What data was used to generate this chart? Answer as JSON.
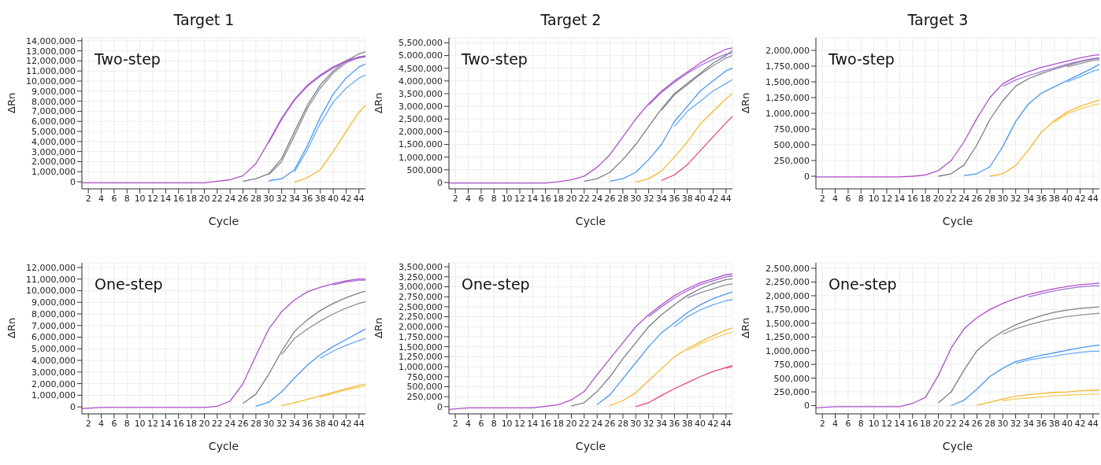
{
  "chart_data": [
    {
      "type": "line",
      "title": "Target 1",
      "xlabel": "Cycle",
      "ylabel": "ΔRn",
      "annotations": [
        "Two-step"
      ],
      "grid": true,
      "x": [
        1,
        4,
        8,
        12,
        14,
        16,
        18,
        20,
        22,
        24,
        26,
        28,
        30,
        32,
        34,
        36,
        38,
        40,
        42,
        44,
        45
      ],
      "xlim": [
        1,
        45
      ],
      "xticks": [
        2,
        4,
        6,
        8,
        10,
        12,
        14,
        16,
        18,
        20,
        22,
        24,
        26,
        28,
        30,
        32,
        34,
        36,
        38,
        40,
        42,
        44
      ],
      "ylim": [
        -700000,
        14300000
      ],
      "yticks": [
        {
          "value": 0,
          "label": "0"
        },
        {
          "value": 1000000,
          "label": "1,000,000"
        },
        {
          "value": 2000000,
          "label": "2,000,000"
        },
        {
          "value": 3000000,
          "label": "3,000,000"
        },
        {
          "value": 4000000,
          "label": "4,000,000"
        },
        {
          "value": 5000000,
          "label": "5,000,000"
        },
        {
          "value": 6000000,
          "label": "6,000,000"
        },
        {
          "value": 7000000,
          "label": "7,000,000"
        },
        {
          "value": 8000000,
          "label": "8,000,000"
        },
        {
          "value": 9000000,
          "label": "9,000,000"
        },
        {
          "value": 10000000,
          "label": "10,000,000"
        },
        {
          "value": 11000000,
          "label": "11,000,000"
        },
        {
          "value": 12000000,
          "label": "12,000,000"
        },
        {
          "value": 13000000,
          "label": "13,000,000"
        },
        {
          "value": 14000000,
          "label": "14,000,000"
        }
      ],
      "series": [
        {
          "color": "#b04ec8",
          "values": [
            -100000,
            -100000,
            -100000,
            -100000,
            -100000,
            -100000,
            -100000,
            -100000,
            50000,
            200000,
            600000,
            1800000,
            4000000,
            6300000,
            8200000,
            9600000,
            10600000,
            11400000,
            12000000,
            12400000,
            12500000
          ]
        },
        {
          "color": "#a070d8",
          "values": [
            null,
            null,
            null,
            null,
            null,
            null,
            null,
            null,
            null,
            null,
            null,
            null,
            3900000,
            6200000,
            8100000,
            9500000,
            10500000,
            11300000,
            11900000,
            12300000,
            12400000
          ]
        },
        {
          "color": "#7d7d88",
          "values": [
            null,
            null,
            null,
            null,
            null,
            null,
            null,
            null,
            null,
            null,
            50000,
            300000,
            800000,
            2300000,
            5000000,
            7600000,
            9600000,
            11000000,
            12000000,
            12700000,
            12900000
          ]
        },
        {
          "color": "#9090a0",
          "values": [
            null,
            null,
            null,
            null,
            null,
            null,
            null,
            null,
            null,
            null,
            null,
            null,
            700000,
            2000000,
            4600000,
            7300000,
            9300000,
            10800000,
            11800000,
            12400000,
            12500000
          ]
        },
        {
          "color": "#4a98f0",
          "values": [
            null,
            null,
            null,
            null,
            null,
            null,
            null,
            null,
            null,
            null,
            null,
            null,
            100000,
            300000,
            1200000,
            3600000,
            6400000,
            8700000,
            10300000,
            11400000,
            11700000
          ]
        },
        {
          "color": "#6aaaf5",
          "values": [
            null,
            null,
            null,
            null,
            null,
            null,
            null,
            null,
            null,
            null,
            null,
            null,
            null,
            null,
            1000000,
            3200000,
            5800000,
            7900000,
            9300000,
            10300000,
            10600000
          ]
        },
        {
          "color": "#f5b830",
          "values": [
            null,
            null,
            null,
            null,
            null,
            null,
            null,
            null,
            null,
            null,
            null,
            null,
            null,
            null,
            -50000,
            400000,
            1200000,
            3000000,
            5000000,
            6900000,
            7600000
          ]
        }
      ]
    },
    {
      "type": "line",
      "title": "Target 2",
      "xlabel": "Cycle",
      "ylabel": "ΔRn",
      "annotations": [
        "Two-step"
      ],
      "grid": true,
      "x": [
        1,
        4,
        8,
        12,
        14,
        16,
        18,
        20,
        22,
        24,
        26,
        28,
        30,
        32,
        34,
        36,
        38,
        40,
        42,
        44,
        45
      ],
      "xlim": [
        1,
        45
      ],
      "xticks": [
        2,
        4,
        6,
        8,
        10,
        12,
        14,
        16,
        18,
        20,
        22,
        24,
        26,
        28,
        30,
        32,
        34,
        36,
        38,
        40,
        42,
        44
      ],
      "ylim": [
        -250000,
        5700000
      ],
      "yticks": [
        {
          "value": 0,
          "label": "0"
        },
        {
          "value": 500000,
          "label": "500,000"
        },
        {
          "value": 1000000,
          "label": "1,000,000"
        },
        {
          "value": 1500000,
          "label": "1,500,000"
        },
        {
          "value": 2000000,
          "label": "2,000,000"
        },
        {
          "value": 2500000,
          "label": "2,500,000"
        },
        {
          "value": 3000000,
          "label": "3,000,000"
        },
        {
          "value": 3500000,
          "label": "3,500,000"
        },
        {
          "value": 4000000,
          "label": "4,000,000"
        },
        {
          "value": 4500000,
          "label": "4,500,000"
        },
        {
          "value": 5000000,
          "label": "5,000,000"
        },
        {
          "value": 5500000,
          "label": "5,500,000"
        }
      ],
      "series": [
        {
          "color": "#b04ec8",
          "values": [
            -20000,
            -20000,
            -20000,
            -20000,
            -20000,
            -20000,
            30000,
            100000,
            250000,
            600000,
            1100000,
            1800000,
            2500000,
            3100000,
            3600000,
            4000000,
            4350000,
            4700000,
            5000000,
            5250000,
            5300000
          ]
        },
        {
          "color": "#a070d8",
          "values": [
            null,
            null,
            null,
            null,
            null,
            null,
            null,
            null,
            null,
            null,
            null,
            null,
            null,
            3050000,
            3550000,
            3950000,
            4300000,
            4600000,
            4850000,
            5050000,
            5100000
          ]
        },
        {
          "color": "#7d7d88",
          "values": [
            null,
            null,
            null,
            null,
            null,
            null,
            null,
            null,
            50000,
            150000,
            400000,
            900000,
            1500000,
            2200000,
            2900000,
            3500000,
            3900000,
            4300000,
            4700000,
            5000000,
            5200000
          ]
        },
        {
          "color": "#9090a0",
          "values": [
            null,
            null,
            null,
            null,
            null,
            null,
            null,
            null,
            null,
            null,
            null,
            null,
            null,
            null,
            2850000,
            3450000,
            3850000,
            4250000,
            4600000,
            4900000,
            5000000
          ]
        },
        {
          "color": "#4a98f0",
          "values": [
            null,
            null,
            null,
            null,
            null,
            null,
            null,
            null,
            null,
            null,
            50000,
            150000,
            400000,
            900000,
            1500000,
            2400000,
            3000000,
            3600000,
            4000000,
            4400000,
            4500000
          ]
        },
        {
          "color": "#6aaaf5",
          "values": [
            null,
            null,
            null,
            null,
            null,
            null,
            null,
            null,
            null,
            null,
            null,
            null,
            null,
            null,
            null,
            2200000,
            2800000,
            3200000,
            3600000,
            3900000,
            4050000
          ]
        },
        {
          "color": "#f5b830",
          "values": [
            null,
            null,
            null,
            null,
            null,
            null,
            null,
            null,
            null,
            null,
            null,
            null,
            20000,
            150000,
            450000,
            1000000,
            1600000,
            2300000,
            2800000,
            3300000,
            3500000
          ]
        },
        {
          "color": "#e8457a",
          "values": [
            null,
            null,
            null,
            null,
            null,
            null,
            null,
            null,
            null,
            null,
            null,
            null,
            null,
            null,
            80000,
            300000,
            700000,
            1250000,
            1800000,
            2350000,
            2600000
          ]
        }
      ]
    },
    {
      "type": "line",
      "title": "Target 3",
      "xlabel": "Cycle",
      "ylabel": "ΔRn",
      "annotations": [
        "Two-step"
      ],
      "grid": true,
      "x": [
        1,
        4,
        8,
        12,
        14,
        16,
        18,
        20,
        22,
        24,
        26,
        28,
        30,
        32,
        34,
        36,
        38,
        40,
        42,
        44,
        45
      ],
      "xlim": [
        1,
        45
      ],
      "xticks": [
        2,
        4,
        6,
        8,
        10,
        12,
        14,
        16,
        18,
        20,
        22,
        24,
        26,
        28,
        30,
        32,
        34,
        36,
        38,
        40,
        42,
        44
      ],
      "ylim": [
        -200000,
        2200000
      ],
      "yticks": [
        {
          "value": 0,
          "label": "0"
        },
        {
          "value": 250000,
          "label": "250,000"
        },
        {
          "value": 500000,
          "label": "500,000"
        },
        {
          "value": 750000,
          "label": "750,000"
        },
        {
          "value": 1000000,
          "label": "1,000,000"
        },
        {
          "value": 1250000,
          "label": "1,250,000"
        },
        {
          "value": 1500000,
          "label": "1,500,000"
        },
        {
          "value": 1750000,
          "label": "1,750,000"
        },
        {
          "value": 2000000,
          "label": "2,000,000"
        }
      ],
      "series": [
        {
          "color": "#b04ec8",
          "values": [
            -10000,
            -10000,
            -10000,
            -10000,
            -10000,
            0,
            20000,
            90000,
            250000,
            550000,
            920000,
            1250000,
            1470000,
            1580000,
            1660000,
            1730000,
            1780000,
            1830000,
            1880000,
            1920000,
            1930000
          ]
        },
        {
          "color": "#a070d8",
          "values": [
            null,
            null,
            null,
            null,
            null,
            null,
            null,
            null,
            null,
            null,
            null,
            null,
            1430000,
            1530000,
            1600000,
            1660000,
            1720000,
            1780000,
            1830000,
            1870000,
            1880000
          ]
        },
        {
          "color": "#7d7d88",
          "values": [
            null,
            null,
            null,
            null,
            null,
            null,
            null,
            0,
            40000,
            180000,
            500000,
            900000,
            1200000,
            1430000,
            1550000,
            1630000,
            1700000,
            1760000,
            1820000,
            1860000,
            1880000
          ]
        },
        {
          "color": "#9090a0",
          "values": [
            null,
            null,
            null,
            null,
            null,
            null,
            null,
            null,
            null,
            null,
            null,
            null,
            null,
            null,
            null,
            null,
            null,
            1740000,
            1790000,
            1840000,
            1850000
          ]
        },
        {
          "color": "#4a98f0",
          "values": [
            null,
            null,
            null,
            null,
            null,
            null,
            null,
            null,
            null,
            10000,
            40000,
            150000,
            470000,
            870000,
            1150000,
            1320000,
            1420000,
            1520000,
            1620000,
            1720000,
            1780000
          ]
        },
        {
          "color": "#6aaaf5",
          "values": [
            null,
            null,
            null,
            null,
            null,
            null,
            null,
            null,
            null,
            null,
            null,
            null,
            null,
            null,
            null,
            null,
            null,
            1500000,
            1580000,
            1670000,
            1700000
          ]
        },
        {
          "color": "#f5b830",
          "values": [
            null,
            null,
            null,
            null,
            null,
            null,
            null,
            null,
            null,
            null,
            null,
            0,
            40000,
            170000,
            420000,
            700000,
            880000,
            1020000,
            1110000,
            1180000,
            1210000
          ]
        },
        {
          "color": "#f7cc60",
          "values": [
            null,
            null,
            null,
            null,
            null,
            null,
            null,
            null,
            null,
            null,
            null,
            null,
            null,
            null,
            null,
            null,
            860000,
            990000,
            1070000,
            1130000,
            1150000
          ]
        }
      ]
    },
    {
      "type": "line",
      "xlabel": "Cycle",
      "ylabel": "ΔRn",
      "annotations": [
        "One-step"
      ],
      "grid": true,
      "x": [
        1,
        4,
        8,
        12,
        14,
        16,
        18,
        20,
        22,
        24,
        26,
        28,
        30,
        32,
        34,
        36,
        38,
        40,
        42,
        44,
        45
      ],
      "xlim": [
        1,
        45
      ],
      "xticks": [
        2,
        4,
        6,
        8,
        10,
        12,
        14,
        16,
        18,
        20,
        22,
        24,
        26,
        28,
        30,
        32,
        34,
        36,
        38,
        40,
        42,
        44
      ],
      "ylim": [
        -600000,
        12400000
      ],
      "yticks": [
        {
          "value": 0,
          "label": "0"
        },
        {
          "value": 1000000,
          "label": "1,000,000"
        },
        {
          "value": 2000000,
          "label": "2,000,000"
        },
        {
          "value": 3000000,
          "label": "3,000,000"
        },
        {
          "value": 4000000,
          "label": "4,000,000"
        },
        {
          "value": 5000000,
          "label": "5,000,000"
        },
        {
          "value": 6000000,
          "label": "6,000,000"
        },
        {
          "value": 7000000,
          "label": "7,000,000"
        },
        {
          "value": 8000000,
          "label": "8,000,000"
        },
        {
          "value": 9000000,
          "label": "9,000,000"
        },
        {
          "value": 10000000,
          "label": "10,000,000"
        },
        {
          "value": 11000000,
          "label": "11,000,000"
        },
        {
          "value": 12000000,
          "label": "12,000,000"
        }
      ],
      "series": [
        {
          "color": "#b04ec8",
          "values": [
            -150000,
            -50000,
            -50000,
            -50000,
            -50000,
            -50000,
            -50000,
            -50000,
            50000,
            500000,
            2000000,
            4400000,
            6700000,
            8200000,
            9200000,
            9900000,
            10300000,
            10600000,
            10850000,
            11000000,
            11000000
          ]
        },
        {
          "color": "#a070d8",
          "values": [
            null,
            null,
            null,
            null,
            null,
            null,
            null,
            null,
            null,
            null,
            null,
            null,
            null,
            null,
            null,
            null,
            null,
            10500000,
            10750000,
            10900000,
            10900000
          ]
        },
        {
          "color": "#7d7d88",
          "values": [
            null,
            null,
            null,
            null,
            null,
            null,
            null,
            null,
            null,
            null,
            300000,
            1100000,
            2800000,
            4800000,
            6500000,
            7500000,
            8300000,
            8900000,
            9400000,
            9800000,
            9950000
          ]
        },
        {
          "color": "#9090a0",
          "values": [
            null,
            null,
            null,
            null,
            null,
            null,
            null,
            null,
            null,
            null,
            null,
            null,
            null,
            4500000,
            5900000,
            6700000,
            7400000,
            8000000,
            8500000,
            8900000,
            9050000
          ]
        },
        {
          "color": "#4a98f0",
          "values": [
            null,
            null,
            null,
            null,
            null,
            null,
            null,
            null,
            null,
            null,
            null,
            50000,
            400000,
            1300000,
            2500000,
            3600000,
            4500000,
            5200000,
            5800000,
            6400000,
            6700000
          ]
        },
        {
          "color": "#6aaaf5",
          "values": [
            null,
            null,
            null,
            null,
            null,
            null,
            null,
            null,
            null,
            null,
            null,
            null,
            null,
            null,
            null,
            null,
            4200000,
            4800000,
            5300000,
            5700000,
            5900000
          ]
        },
        {
          "color": "#f5b830",
          "values": [
            null,
            null,
            null,
            null,
            null,
            null,
            null,
            null,
            null,
            null,
            null,
            null,
            null,
            100000,
            350000,
            650000,
            950000,
            1250000,
            1550000,
            1850000,
            1950000
          ]
        },
        {
          "color": "#f7cc60",
          "values": [
            null,
            null,
            null,
            null,
            null,
            null,
            null,
            null,
            null,
            null,
            null,
            null,
            null,
            null,
            null,
            null,
            850000,
            1150000,
            1450000,
            1700000,
            1800000
          ]
        }
      ]
    },
    {
      "type": "line",
      "xlabel": "Cycle",
      "ylabel": "ΔRn",
      "annotations": [
        "One-step"
      ],
      "grid": true,
      "x": [
        1,
        4,
        8,
        12,
        14,
        16,
        18,
        20,
        22,
        24,
        26,
        28,
        30,
        32,
        34,
        36,
        38,
        40,
        42,
        44,
        45
      ],
      "xlim": [
        1,
        45
      ],
      "xticks": [
        2,
        4,
        6,
        8,
        10,
        12,
        14,
        16,
        18,
        20,
        22,
        24,
        26,
        28,
        30,
        32,
        34,
        36,
        38,
        40,
        42,
        44
      ],
      "ylim": [
        -180000,
        3600000
      ],
      "yticks": [
        {
          "value": 0,
          "label": "0"
        },
        {
          "value": 250000,
          "label": "250,000"
        },
        {
          "value": 500000,
          "label": "500,000"
        },
        {
          "value": 750000,
          "label": "750,000"
        },
        {
          "value": 1000000,
          "label": "1,000,000"
        },
        {
          "value": 1250000,
          "label": "1,250,000"
        },
        {
          "value": 1500000,
          "label": "1,500,000"
        },
        {
          "value": 1750000,
          "label": "1,750,000"
        },
        {
          "value": 2000000,
          "label": "2,000,000"
        },
        {
          "value": 2250000,
          "label": "2,250,000"
        },
        {
          "value": 2500000,
          "label": "2,500,000"
        },
        {
          "value": 2750000,
          "label": "2,750,000"
        },
        {
          "value": 3000000,
          "label": "3,000,000"
        },
        {
          "value": 3250000,
          "label": "3,250,000"
        },
        {
          "value": 3500000,
          "label": "3,500,000"
        }
      ],
      "series": [
        {
          "color": "#b04ec8",
          "values": [
            -70000,
            -30000,
            -30000,
            -30000,
            -30000,
            10000,
            50000,
            170000,
            380000,
            800000,
            1200000,
            1600000,
            2000000,
            2300000,
            2550000,
            2780000,
            2950000,
            3100000,
            3200000,
            3300000,
            3320000
          ]
        },
        {
          "color": "#a070d8",
          "values": [
            null,
            null,
            null,
            null,
            null,
            null,
            null,
            null,
            null,
            null,
            null,
            null,
            null,
            2250000,
            2500000,
            2720000,
            2900000,
            3050000,
            3150000,
            3250000,
            3270000
          ]
        },
        {
          "color": "#7d7d88",
          "values": [
            null,
            null,
            null,
            null,
            null,
            null,
            null,
            20000,
            100000,
            380000,
            750000,
            1200000,
            1600000,
            2000000,
            2300000,
            2550000,
            2780000,
            2950000,
            3080000,
            3180000,
            3200000
          ]
        },
        {
          "color": "#9090a0",
          "values": [
            null,
            null,
            null,
            null,
            null,
            null,
            null,
            null,
            null,
            null,
            null,
            null,
            null,
            null,
            null,
            null,
            2720000,
            2850000,
            2950000,
            3050000,
            3070000
          ]
        },
        {
          "color": "#4a98f0",
          "values": [
            null,
            null,
            null,
            null,
            null,
            null,
            null,
            null,
            null,
            50000,
            300000,
            700000,
            1100000,
            1500000,
            1850000,
            2100000,
            2350000,
            2550000,
            2700000,
            2820000,
            2870000
          ]
        },
        {
          "color": "#6aaaf5",
          "values": [
            null,
            null,
            null,
            null,
            null,
            null,
            null,
            null,
            null,
            null,
            null,
            null,
            null,
            null,
            null,
            2000000,
            2250000,
            2420000,
            2550000,
            2650000,
            2680000
          ]
        },
        {
          "color": "#f5b830",
          "values": [
            null,
            null,
            null,
            null,
            null,
            null,
            null,
            null,
            null,
            null,
            30000,
            150000,
            350000,
            650000,
            950000,
            1250000,
            1450000,
            1620000,
            1780000,
            1920000,
            1970000
          ]
        },
        {
          "color": "#f7cc60",
          "values": [
            null,
            null,
            null,
            null,
            null,
            null,
            null,
            null,
            null,
            null,
            null,
            null,
            null,
            null,
            null,
            null,
            1400000,
            1570000,
            1700000,
            1820000,
            1870000
          ]
        },
        {
          "color": "#e8457a",
          "values": [
            null,
            null,
            null,
            null,
            null,
            null,
            null,
            null,
            null,
            null,
            null,
            null,
            0,
            100000,
            280000,
            450000,
            600000,
            750000,
            880000,
            980000,
            1030000
          ]
        },
        {
          "color": "#ee6a92",
          "values": [
            null,
            null,
            null,
            null,
            null,
            null,
            null,
            null,
            null,
            null,
            null,
            null,
            null,
            null,
            null,
            null,
            null,
            null,
            null,
            960000,
            1000000
          ]
        }
      ]
    },
    {
      "type": "line",
      "xlabel": "Cycle",
      "ylabel": "ΔRn",
      "annotations": [
        "One-step"
      ],
      "grid": true,
      "x": [
        1,
        4,
        8,
        12,
        14,
        16,
        18,
        20,
        22,
        24,
        26,
        28,
        30,
        32,
        34,
        36,
        38,
        40,
        42,
        44,
        45
      ],
      "xlim": [
        1,
        45
      ],
      "xticks": [
        2,
        4,
        6,
        8,
        10,
        12,
        14,
        16,
        18,
        20,
        22,
        24,
        26,
        28,
        30,
        32,
        34,
        36,
        38,
        40,
        42,
        44
      ],
      "ylim": [
        -150000,
        2600000
      ],
      "yticks": [
        {
          "value": 0,
          "label": "0"
        },
        {
          "value": 250000,
          "label": "250,000"
        },
        {
          "value": 500000,
          "label": "500,000"
        },
        {
          "value": 750000,
          "label": "750,000"
        },
        {
          "value": 1000000,
          "label": "1,000,000"
        },
        {
          "value": 1250000,
          "label": "1,250,000"
        },
        {
          "value": 1500000,
          "label": "1,500,000"
        },
        {
          "value": 1750000,
          "label": "1,750,000"
        },
        {
          "value": 2000000,
          "label": "2,000,000"
        },
        {
          "value": 2250000,
          "label": "2,250,000"
        },
        {
          "value": 2500000,
          "label": "2,500,000"
        }
      ],
      "series": [
        {
          "color": "#b04ec8",
          "values": [
            -40000,
            -20000,
            -20000,
            -20000,
            -20000,
            40000,
            150000,
            550000,
            1050000,
            1400000,
            1600000,
            1750000,
            1860000,
            1950000,
            2020000,
            2080000,
            2130000,
            2170000,
            2200000,
            2220000,
            2230000
          ]
        },
        {
          "color": "#a070d8",
          "values": [
            null,
            null,
            null,
            null,
            null,
            null,
            null,
            null,
            null,
            null,
            null,
            null,
            null,
            null,
            1980000,
            2040000,
            2090000,
            2130000,
            2160000,
            2180000,
            2180000
          ]
        },
        {
          "color": "#7d7d88",
          "values": [
            null,
            null,
            null,
            null,
            null,
            null,
            null,
            50000,
            250000,
            650000,
            1000000,
            1200000,
            1350000,
            1470000,
            1560000,
            1640000,
            1700000,
            1740000,
            1770000,
            1790000,
            1800000
          ]
        },
        {
          "color": "#9090a0",
          "values": [
            null,
            null,
            null,
            null,
            null,
            null,
            null,
            null,
            null,
            null,
            null,
            null,
            1300000,
            1400000,
            1470000,
            1530000,
            1580000,
            1620000,
            1650000,
            1670000,
            1680000
          ]
        },
        {
          "color": "#4a98f0",
          "values": [
            null,
            null,
            null,
            null,
            null,
            null,
            null,
            null,
            0,
            100000,
            300000,
            530000,
            680000,
            800000,
            860000,
            920000,
            960000,
            1010000,
            1050000,
            1090000,
            1100000
          ]
        },
        {
          "color": "#6aaaf5",
          "values": [
            null,
            null,
            null,
            null,
            null,
            null,
            null,
            null,
            null,
            null,
            null,
            null,
            null,
            770000,
            830000,
            870000,
            900000,
            940000,
            970000,
            990000,
            990000
          ]
        },
        {
          "color": "#f5b830",
          "values": [
            null,
            null,
            null,
            null,
            null,
            null,
            null,
            null,
            null,
            null,
            10000,
            60000,
            120000,
            170000,
            200000,
            220000,
            240000,
            250000,
            270000,
            280000,
            280000
          ]
        },
        {
          "color": "#f7cc60",
          "values": [
            null,
            null,
            null,
            null,
            null,
            null,
            null,
            null,
            null,
            null,
            null,
            null,
            90000,
            120000,
            140000,
            160000,
            180000,
            190000,
            200000,
            210000,
            210000
          ]
        }
      ]
    }
  ]
}
